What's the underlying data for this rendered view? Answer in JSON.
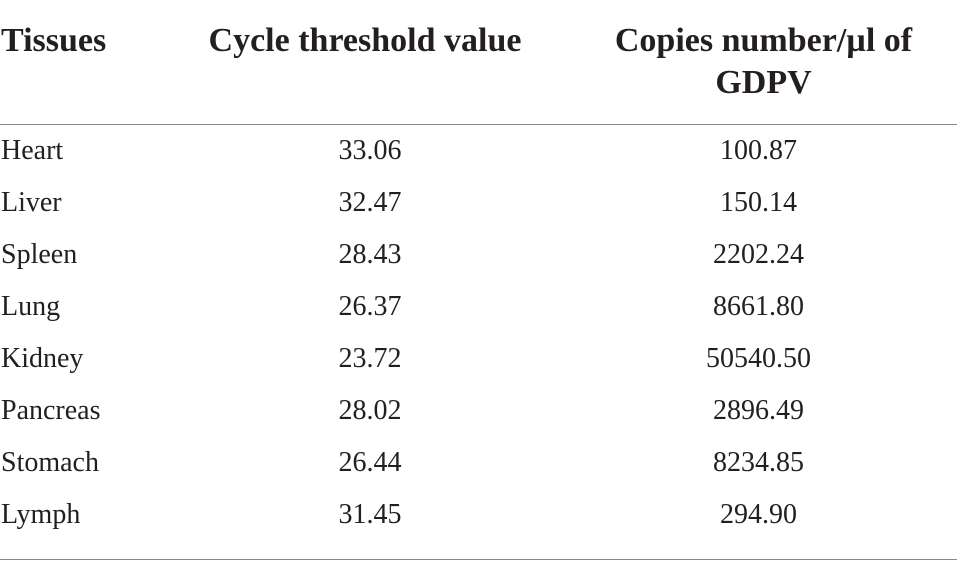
{
  "table": {
    "headers": {
      "tissues": "Tissues",
      "ct": "Cycle threshold value",
      "copies": "Copies number/µl of GDPV"
    },
    "rows": [
      {
        "tissue": "Heart",
        "ct": "33.06",
        "copies": "100.87"
      },
      {
        "tissue": "Liver",
        "ct": "32.47",
        "copies": "150.14"
      },
      {
        "tissue": "Spleen",
        "ct": "28.43",
        "copies": "2202.24"
      },
      {
        "tissue": "Lung",
        "ct": "26.37",
        "copies": "8661.80"
      },
      {
        "tissue": "Kidney",
        "ct": "23.72",
        "copies": "50540.50"
      },
      {
        "tissue": "Pancreas",
        "ct": "28.02",
        "copies": "2896.49"
      },
      {
        "tissue": "Stomach",
        "ct": "26.44",
        "copies": "8234.85"
      },
      {
        "tissue": "Lymph",
        "ct": "31.45",
        "copies": "294.90"
      }
    ]
  }
}
